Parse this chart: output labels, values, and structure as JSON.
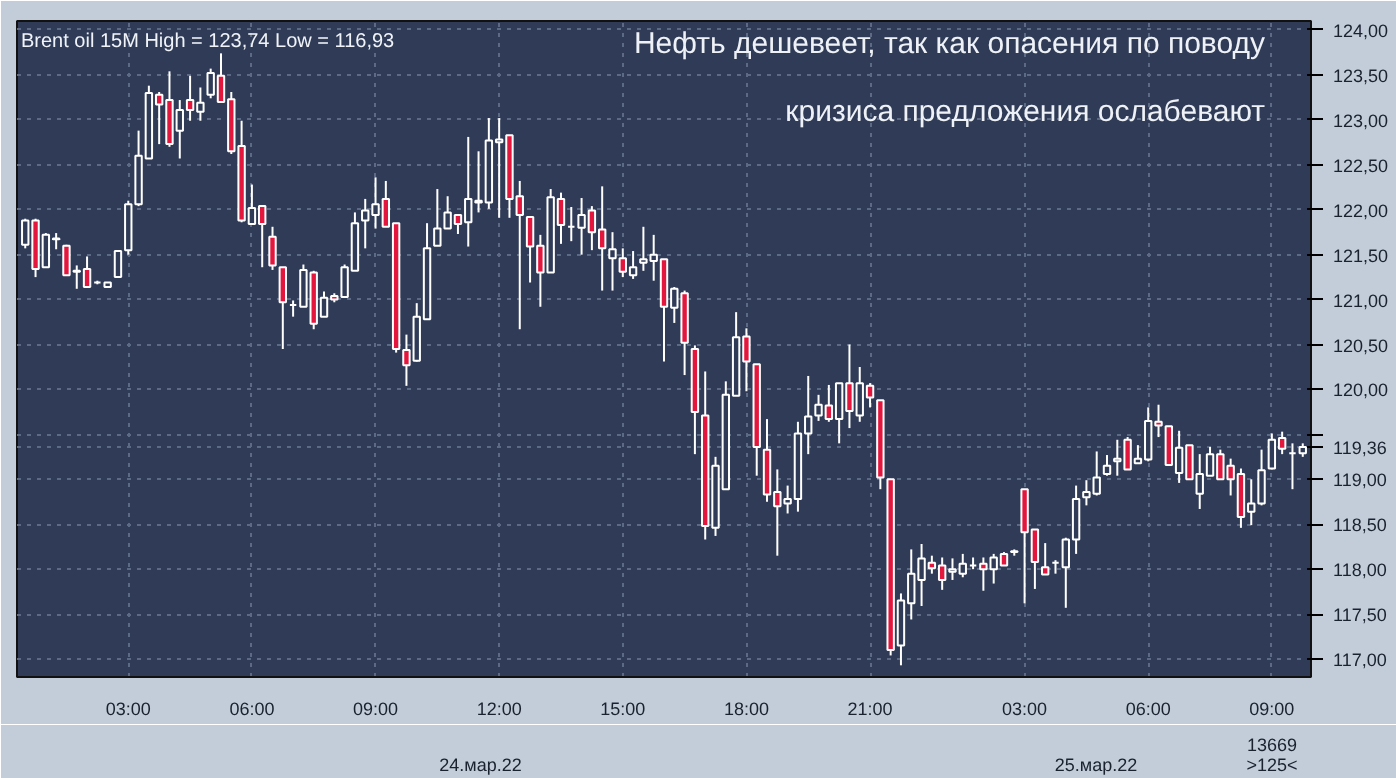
{
  "chart_data": {
    "type": "candlestick",
    "title": "Нефть дешевеет, так как опасения по поводу\nкризиса предложения ослабевают",
    "annotations": [
      "Brent oil 15M High = 123,74 Low = 116,93",
      "24.мар.22",
      "25.мар.22",
      "13669",
      ">125<"
    ],
    "categories": [
      null,
      null,
      null,
      null,
      null,
      null,
      null,
      null,
      null,
      null,
      "03:00",
      null,
      null,
      null,
      null,
      null,
      null,
      null,
      null,
      null,
      null,
      null,
      "06:00",
      null,
      null,
      null,
      null,
      null,
      null,
      null,
      null,
      null,
      null,
      null,
      "09:00",
      null,
      null,
      null,
      null,
      null,
      null,
      null,
      null,
      null,
      null,
      null,
      "12:00",
      null,
      null,
      null,
      null,
      null,
      null,
      null,
      null,
      null,
      null,
      null,
      "15:00",
      null,
      null,
      null,
      null,
      null,
      null,
      null,
      null,
      null,
      null,
      null,
      "18:00",
      null,
      null,
      null,
      null,
      null,
      null,
      null,
      null,
      null,
      null,
      null,
      "21:00",
      null,
      null,
      null,
      null,
      null,
      null,
      null,
      null,
      null,
      null,
      null,
      null,
      null,
      null,
      "03:00",
      null,
      null,
      null,
      null,
      null,
      null,
      null,
      null,
      null,
      null,
      null,
      "06:00",
      null,
      null,
      null,
      null,
      null,
      null,
      null,
      null,
      null,
      null,
      null,
      "09:00",
      null,
      null,
      null
    ],
    "ohlc": [
      [
        121.61,
        121.9,
        121.57,
        121.88
      ],
      [
        121.88,
        121.9,
        121.25,
        121.34
      ],
      [
        121.36,
        121.74,
        121.36,
        121.72
      ],
      [
        121.67,
        121.74,
        121.56,
        121.68
      ],
      [
        121.6,
        121.61,
        121.27,
        121.27
      ],
      [
        121.32,
        121.38,
        121.12,
        121.31
      ],
      [
        121.34,
        121.48,
        121.14,
        121.14
      ],
      [
        121.19,
        121.21,
        121.17,
        121.19
      ],
      [
        121.14,
        121.19,
        121.14,
        121.19
      ],
      [
        121.25,
        121.55,
        121.25,
        121.54
      ],
      [
        121.55,
        122.1,
        121.5,
        122.06
      ],
      [
        122.06,
        122.88,
        122.04,
        122.6
      ],
      [
        122.57,
        123.38,
        122.57,
        123.3
      ],
      [
        123.28,
        123.31,
        122.73,
        123.17
      ],
      [
        123.22,
        123.54,
        122.7,
        122.73
      ],
      [
        122.88,
        123.22,
        122.57,
        123.11
      ],
      [
        123.22,
        123.49,
        122.99,
        123.11
      ],
      [
        123.09,
        123.36,
        122.99,
        123.19
      ],
      [
        123.28,
        123.57,
        123.24,
        123.52
      ],
      [
        123.49,
        123.74,
        123.2,
        123.2
      ],
      [
        123.23,
        123.31,
        122.62,
        122.65
      ],
      [
        122.71,
        122.99,
        121.86,
        121.88
      ],
      [
        121.84,
        122.28,
        121.83,
        122.02
      ],
      [
        122.04,
        122.04,
        121.36,
        121.84
      ],
      [
        121.7,
        121.81,
        121.33,
        121.38
      ],
      [
        121.36,
        121.36,
        120.45,
        120.97
      ],
      [
        120.94,
        120.99,
        120.81,
        120.94
      ],
      [
        120.92,
        121.39,
        120.92,
        121.33
      ],
      [
        121.3,
        121.32,
        120.67,
        120.73
      ],
      [
        120.81,
        121.09,
        120.81,
        121.02
      ],
      [
        121.04,
        121.07,
        120.97,
        121.0
      ],
      [
        121.03,
        121.39,
        121.03,
        121.36
      ],
      [
        121.32,
        121.97,
        121.32,
        121.85
      ],
      [
        121.88,
        122.12,
        121.57,
        121.99
      ],
      [
        121.94,
        122.36,
        121.79,
        122.06
      ],
      [
        122.12,
        122.32,
        121.81,
        121.81
      ],
      [
        121.85,
        121.85,
        120.41,
        120.45
      ],
      [
        120.44,
        120.61,
        120.04,
        120.27
      ],
      [
        120.32,
        120.96,
        120.31,
        120.81
      ],
      [
        120.78,
        121.85,
        120.78,
        121.57
      ],
      [
        121.6,
        122.23,
        121.6,
        121.79
      ],
      [
        121.79,
        122.15,
        121.79,
        121.97
      ],
      [
        121.94,
        121.94,
        121.73,
        121.84
      ],
      [
        121.86,
        122.81,
        121.59,
        122.12
      ],
      [
        122.08,
        122.65,
        121.97,
        122.1
      ],
      [
        122.08,
        123.02,
        122.01,
        122.77
      ],
      [
        122.75,
        123.02,
        121.91,
        122.78
      ],
      [
        122.83,
        122.83,
        121.91,
        122.12
      ],
      [
        122.15,
        122.32,
        120.67,
        121.94
      ],
      [
        121.92,
        121.92,
        121.19,
        121.59
      ],
      [
        121.6,
        121.72,
        120.92,
        121.3
      ],
      [
        121.3,
        122.23,
        121.3,
        122.14
      ],
      [
        122.12,
        122.19,
        121.62,
        121.83
      ],
      [
        121.81,
        122.03,
        121.65,
        121.81
      ],
      [
        121.8,
        122.13,
        121.5,
        121.94
      ],
      [
        121.99,
        122.04,
        121.55,
        121.75
      ],
      [
        121.78,
        122.26,
        121.1,
        121.57
      ],
      [
        121.46,
        121.75,
        121.1,
        121.56
      ],
      [
        121.46,
        121.57,
        121.25,
        121.31
      ],
      [
        121.27,
        121.54,
        121.23,
        121.36
      ],
      [
        121.41,
        121.81,
        121.32,
        121.45
      ],
      [
        121.43,
        121.72,
        121.21,
        121.5
      ],
      [
        121.45,
        121.45,
        120.31,
        120.92
      ],
      [
        120.91,
        121.14,
        120.74,
        121.12
      ],
      [
        121.07,
        121.1,
        120.16,
        120.52
      ],
      [
        120.45,
        120.49,
        119.28,
        119.75
      ],
      [
        119.71,
        120.2,
        118.33,
        118.48
      ],
      [
        118.46,
        119.25,
        118.37,
        119.15
      ],
      [
        118.89,
        120.09,
        118.89,
        119.94
      ],
      [
        119.93,
        120.86,
        119.93,
        120.58
      ],
      [
        120.59,
        120.68,
        119.98,
        120.31
      ],
      [
        120.28,
        120.28,
        119.04,
        119.36
      ],
      [
        119.33,
        119.67,
        118.75,
        118.83
      ],
      [
        118.86,
        119.11,
        118.15,
        118.7
      ],
      [
        118.73,
        118.93,
        118.62,
        118.78
      ],
      [
        118.78,
        119.64,
        118.64,
        119.51
      ],
      [
        119.51,
        120.15,
        119.28,
        119.7
      ],
      [
        119.71,
        119.94,
        119.65,
        119.83
      ],
      [
        119.82,
        120.05,
        119.64,
        119.67
      ],
      [
        119.67,
        120.07,
        119.4,
        120.07
      ],
      [
        120.07,
        120.5,
        119.57,
        119.76
      ],
      [
        119.71,
        120.25,
        119.64,
        120.07
      ],
      [
        120.04,
        120.07,
        119.8,
        119.91
      ],
      [
        119.88,
        119.88,
        118.89,
        119.02
      ],
      [
        119.0,
        119.0,
        117.04,
        117.1
      ],
      [
        117.15,
        117.73,
        116.93,
        117.65
      ],
      [
        117.62,
        118.22,
        117.44,
        117.95
      ],
      [
        117.88,
        118.28,
        117.59,
        118.12
      ],
      [
        118.07,
        118.15,
        117.95,
        118.01
      ],
      [
        118.04,
        118.13,
        117.77,
        117.88
      ],
      [
        117.97,
        118.12,
        117.88,
        118.0
      ],
      [
        117.95,
        118.17,
        117.91,
        118.06
      ],
      [
        118.04,
        118.13,
        118.0,
        118.04
      ],
      [
        118.06,
        118.13,
        117.76,
        118.0
      ],
      [
        118.0,
        118.17,
        117.84,
        118.13
      ],
      [
        118.17,
        118.19,
        118.04,
        118.04
      ],
      [
        118.19,
        118.22,
        118.15,
        118.2
      ],
      [
        118.89,
        118.89,
        117.62,
        118.41
      ],
      [
        118.44,
        118.44,
        117.78,
        118.08
      ],
      [
        118.02,
        118.29,
        117.94,
        117.94
      ],
      [
        118.07,
        118.1,
        117.95,
        118.07
      ],
      [
        118.02,
        118.35,
        117.57,
        118.33
      ],
      [
        118.33,
        118.93,
        118.17,
        118.78
      ],
      [
        118.8,
        118.99,
        118.71,
        118.86
      ],
      [
        118.84,
        119.31,
        118.82,
        119.02
      ],
      [
        119.06,
        119.27,
        119.04,
        119.15
      ],
      [
        119.2,
        119.44,
        119.04,
        119.23
      ],
      [
        119.44,
        119.47,
        119.11,
        119.11
      ],
      [
        119.18,
        119.38,
        119.18,
        119.23
      ],
      [
        119.22,
        119.8,
        119.2,
        119.65
      ],
      [
        119.64,
        119.83,
        119.47,
        119.6
      ],
      [
        119.59,
        119.59,
        119.16,
        119.16
      ],
      [
        119.07,
        119.54,
        118.96,
        119.35
      ],
      [
        119.38,
        119.38,
        119.0,
        119.0
      ],
      [
        118.84,
        119.28,
        118.67,
        119.06
      ],
      [
        119.04,
        119.36,
        119.04,
        119.28
      ],
      [
        119.28,
        119.33,
        119.0,
        119.0
      ],
      [
        119.15,
        119.23,
        118.82,
        119.0
      ],
      [
        119.06,
        119.12,
        118.46,
        118.58
      ],
      [
        118.64,
        119.0,
        118.49,
        118.73
      ],
      [
        118.73,
        119.33,
        118.71,
        119.1
      ],
      [
        119.12,
        119.51,
        119.11,
        119.44
      ],
      [
        119.46,
        119.53,
        119.28,
        119.34
      ],
      [
        119.29,
        119.4,
        118.89,
        119.29
      ],
      [
        119.29,
        119.4,
        119.25,
        119.36
      ]
    ],
    "ylim": [
      116.8,
      124.1
    ],
    "yticks": [
      {
        "value": 117,
        "label": "117,00"
      },
      {
        "value": 117.5,
        "label": "117,50"
      },
      {
        "value": 118,
        "label": "118,00"
      },
      {
        "value": 118.5,
        "label": "118,50"
      },
      {
        "value": 119,
        "label": "119,00"
      },
      {
        "value": 119.36,
        "label": "119,36"
      },
      {
        "value": 119.5,
        "label": null
      },
      {
        "value": 120,
        "label": "120,00"
      },
      {
        "value": 120.5,
        "label": "120,50"
      },
      {
        "value": 121,
        "label": "121,00"
      },
      {
        "value": 121.5,
        "label": "121,50"
      },
      {
        "value": 122,
        "label": "122,00"
      },
      {
        "value": 122.5,
        "label": "122,50"
      },
      {
        "value": 123,
        "label": "123,00"
      },
      {
        "value": 123.5,
        "label": "123,50"
      },
      {
        "value": 124,
        "label": "124,00"
      }
    ],
    "grid": true
  }
}
